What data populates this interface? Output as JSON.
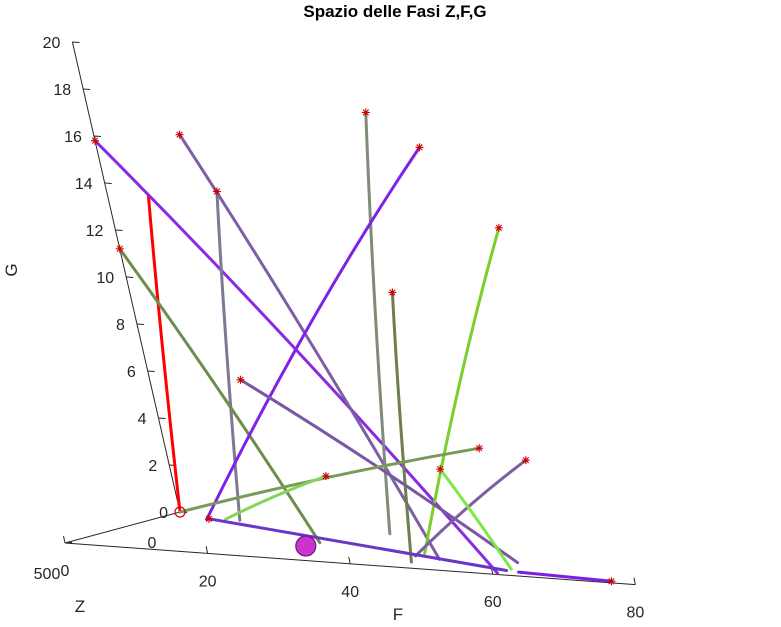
{
  "chart_data": {
    "type": "line",
    "title": "Spazio delle Fasi Z,F,G",
    "xlabel": "F",
    "ylabel": "Z",
    "zlabel": "G",
    "x_ticks": [
      "0",
      "20",
      "40",
      "60",
      "80"
    ],
    "y_ticks": [
      "0",
      "500"
    ],
    "z_ticks": [
      "0",
      "2",
      "4",
      "6",
      "8",
      "10",
      "12",
      "14",
      "16",
      "18",
      "20"
    ],
    "xlim": [
      0,
      80
    ],
    "ylim": [
      0,
      500
    ],
    "zlim": [
      0,
      20
    ],
    "grid": false,
    "equilibrium_point_color": "#cc33cc",
    "start_marker_color": "#cc0000",
    "series": [
      {
        "color": "#ff0000",
        "start_marker": "circle",
        "points": [
          [
            0,
            0,
            0
          ],
          [
            10,
            120,
            14
          ]
        ]
      },
      {
        "color": "#8a2be2",
        "start_marker": "star",
        "points": [
          [
            0,
            0,
            15.8
          ],
          [
            60,
            480,
            0
          ]
        ]
      },
      {
        "color": "#7d5fa6",
        "start_marker": "star",
        "points": [
          [
            14,
            50,
            16.5
          ],
          [
            48,
            360,
            0
          ]
        ]
      },
      {
        "color": "#7f7893",
        "start_marker": "star",
        "points": [
          [
            22,
            180,
            14.6
          ],
          [
            10,
            50,
            0
          ]
        ]
      },
      {
        "color": "#6b8e4e",
        "start_marker": "star",
        "points": [
          [
            0,
            0,
            11.2
          ],
          [
            28,
            260,
            0
          ]
        ]
      },
      {
        "color": "#7f8c7a",
        "start_marker": "star",
        "points": [
          [
            50,
            300,
            18.9
          ],
          [
            32,
            80,
            0
          ]
        ]
      },
      {
        "color": "#7f22e8",
        "start_marker": "star",
        "points": [
          [
            60,
            400,
            17.9
          ],
          [
            6,
            70,
            0
          ]
        ]
      },
      {
        "color": "#7ccf2a",
        "start_marker": "star",
        "points": [
          [
            68,
            380,
            14.6
          ],
          [
            44,
            300,
            0
          ]
        ]
      },
      {
        "color": "#6d7f4d",
        "start_marker": "star",
        "points": [
          [
            50,
            360,
            11.4
          ],
          [
            46,
            420,
            0
          ]
        ]
      },
      {
        "color": "#7a57a6",
        "start_marker": "star",
        "points": [
          [
            22,
            260,
            6.8
          ],
          [
            58,
            330,
            0
          ]
        ]
      },
      {
        "color": "#7a9a58",
        "start_marker": "star",
        "points": [
          [
            58,
            380,
            5.0
          ],
          [
            0,
            0,
            0
          ]
        ]
      },
      {
        "color": "#7c5fa0",
        "start_marker": "star",
        "points": [
          [
            66,
            430,
            4.8
          ],
          [
            44,
            340,
            0
          ]
        ]
      },
      {
        "color": "#7ee84a",
        "start_marker": "star",
        "points": [
          [
            50,
            330,
            3.8
          ],
          [
            60,
            420,
            0
          ]
        ]
      },
      {
        "color": "#86d35a",
        "start_marker": "star",
        "points": [
          [
            30,
            230,
            2.8
          ],
          [
            8,
            50,
            0
          ]
        ]
      },
      {
        "color": "#7a1ee6",
        "start_marker": "star",
        "points": [
          [
            76,
            480,
            0
          ],
          [
            62,
            450,
            0
          ]
        ]
      },
      {
        "color": "#6a35c8",
        "start_marker": "star",
        "points": [
          [
            6,
            60,
            0
          ],
          [
            60,
            440,
            0
          ]
        ]
      }
    ]
  }
}
